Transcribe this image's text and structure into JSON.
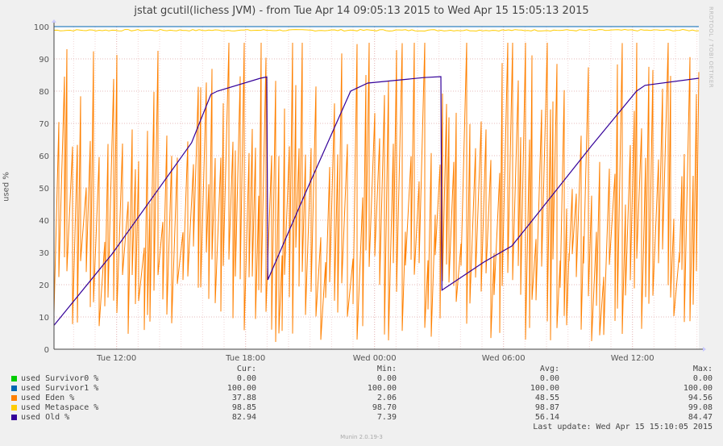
{
  "title": "jstat gcutil(lichess JVM) - from Tue Apr 14 09:05:13 2015 to Wed Apr 15 15:05:13 2015",
  "watermark": "RRDTOOL / TOBI OETIKER",
  "footer": "Munin 2.0.19-3",
  "legend_headers": {
    "cur": "Cur:",
    "min": "Min:",
    "avg": "Avg:",
    "max": "Max:"
  },
  "legend": [
    {
      "name": "used Survivor0 %",
      "color": "#00cc00",
      "cur": "0.00",
      "min": "0.00",
      "avg": "0.00",
      "max": "0.00"
    },
    {
      "name": "used Survivor1 %",
      "color": "#0066b3",
      "cur": "100.00",
      "min": "100.00",
      "avg": "100.00",
      "max": "100.00"
    },
    {
      "name": "used Eden %",
      "color": "#ff8000",
      "cur": "37.88",
      "min": "2.06",
      "avg": "48.55",
      "max": "94.56"
    },
    {
      "name": "used Metaspace %",
      "color": "#ffcc00",
      "cur": "98.85",
      "min": "98.70",
      "avg": "98.87",
      "max": "99.08"
    },
    {
      "name": "used Old %",
      "color": "#330099",
      "cur": "82.94",
      "min": "7.39",
      "avg": "56.14",
      "max": "84.47"
    }
  ],
  "last_update": "Last update: Wed Apr 15 15:10:05 2015",
  "chart_data": {
    "type": "line",
    "title": "jstat gcutil(lichess JVM) - from Tue Apr 14 09:05:13 2015 to Wed Apr 15 15:05:13 2015",
    "ylabel": "used %",
    "xlabel": "",
    "ylim": [
      0,
      100
    ],
    "yticks": [
      0,
      10,
      20,
      30,
      40,
      50,
      60,
      70,
      80,
      90,
      100
    ],
    "xlim": [
      "Tue Apr 14 09:05:13 2015",
      "Wed Apr 15 15:05:13 2015"
    ],
    "xticks": [
      {
        "label": "Tue 12:00",
        "hours": 2.913
      },
      {
        "label": "Tue 18:00",
        "hours": 8.913
      },
      {
        "label": "Wed 00:00",
        "hours": 14.913
      },
      {
        "label": "Wed 06:00",
        "hours": 20.913
      },
      {
        "label": "Wed 12:00",
        "hours": 26.913
      }
    ],
    "x_unit": "hours since start",
    "grid": true,
    "series": [
      {
        "name": "used Survivor0 %",
        "color": "#00cc00",
        "constant": 0
      },
      {
        "name": "used Survivor1 %",
        "color": "#0066b3",
        "constant": 100
      },
      {
        "name": "used Metaspace %",
        "color": "#ffcc00",
        "constant": 98.87
      },
      {
        "name": "used Eden %",
        "color": "#ff8000",
        "note": "sawtooth oscillating between ~2 and ~95, approx. every 10 min"
      },
      {
        "name": "used Old %",
        "color": "#330099",
        "points": [
          [
            0,
            7.4
          ],
          [
            2.7,
            29.5
          ],
          [
            6.4,
            64
          ],
          [
            7.3,
            79
          ],
          [
            7.6,
            80
          ],
          [
            9.6,
            84
          ],
          [
            9.9,
            84.4
          ],
          [
            9.95,
            21.5
          ],
          [
            11.8,
            50
          ],
          [
            13.8,
            80
          ],
          [
            14.6,
            82.5
          ],
          [
            17.2,
            84.2
          ],
          [
            18.0,
            84.5
          ],
          [
            18.05,
            18.3
          ],
          [
            20.0,
            27
          ],
          [
            21.3,
            32
          ],
          [
            22.5,
            42
          ],
          [
            25.0,
            63
          ],
          [
            27.1,
            80
          ],
          [
            27.5,
            81.8
          ],
          [
            30.0,
            84.0
          ]
        ]
      }
    ]
  }
}
